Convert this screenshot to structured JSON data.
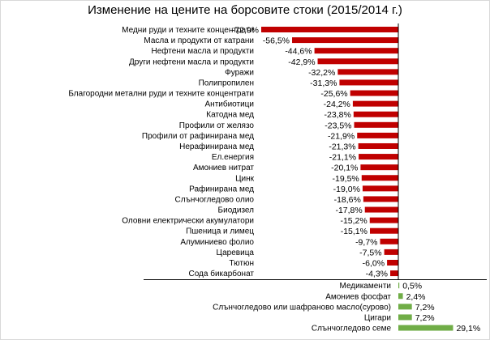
{
  "chart_data": {
    "type": "bar",
    "orientation": "horizontal",
    "title": "Изменение на цените на борсовите стоки (2015/2014 г.)",
    "categories": [
      "Медни руди и техните концентрати",
      "Масла и продукти от катрани",
      "Нефтени масла и продукти",
      "Други нефтени масла и продукти",
      "Фуражи",
      "Полипропилен",
      "Благородни метални руди и техните концентрати",
      "Антибиотици",
      "Катодна мед",
      "Профили от желязо",
      "Профили от рафинирана мед",
      "Нерафинирана мед",
      "Ел.енергия",
      "Амониев нитрат",
      "Цинк",
      "Рафинирана мед",
      "Слънчогледово олио",
      "Биодизел",
      "Оловни електрически акумулатори",
      "Пшеница и лимец",
      "Алуминиево фолио",
      "Царевица",
      "Тютюн",
      "Сода бикарбонат",
      "Медикаменти",
      "Амониев фосфат",
      "Слънчогледово или шафраново масло(сурово)",
      "Цигари",
      "Слънчогледово семе"
    ],
    "values": [
      -72.9,
      -56.5,
      -44.6,
      -42.9,
      -32.2,
      -31.3,
      -25.6,
      -24.2,
      -23.8,
      -23.5,
      -21.9,
      -21.3,
      -21.1,
      -20.1,
      -19.5,
      -19.0,
      -18.6,
      -17.8,
      -15.2,
      -15.1,
      -9.7,
      -7.5,
      -6.0,
      -4.3,
      0.5,
      2.4,
      7.2,
      7.2,
      29.1
    ],
    "value_labels": [
      "-72,9%",
      "-56,5%",
      "-44,6%",
      "-42,9%",
      "-32,2%",
      "-31,3%",
      "-25,6%",
      "-24,2%",
      "-23,8%",
      "-23,5%",
      "-21,9%",
      "-21,3%",
      "-21,1%",
      "-20,1%",
      "-19,5%",
      "-19,0%",
      "-18,6%",
      "-17,8%",
      "-15,2%",
      "-15,1%",
      "-9,7%",
      "-7,5%",
      "-6,0%",
      "-4,3%",
      "0,5%",
      "2,4%",
      "7,2%",
      "7,2%",
      "29,1%"
    ],
    "unit": "%",
    "xlim": [
      -72.9,
      29.1
    ],
    "grid": false,
    "legend": "none",
    "colors": {
      "negative": "#c00000",
      "positive": "#70ad47",
      "axis": "#000000",
      "frame": "#d9d9d9"
    }
  }
}
